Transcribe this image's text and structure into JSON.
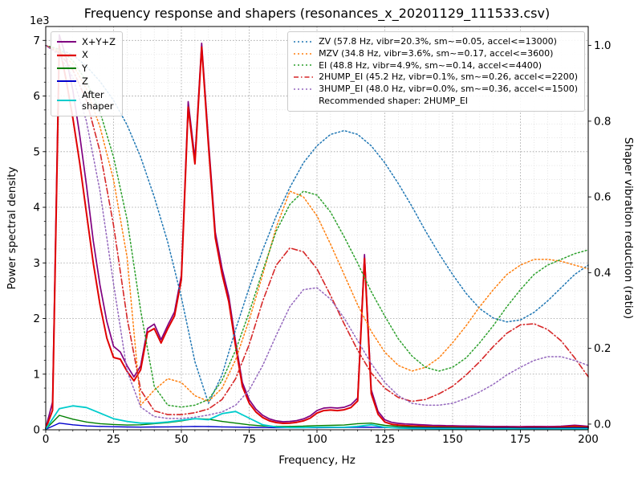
{
  "figure": {
    "title": "Frequency response and shapers (resonances_x_20201129_111533.csv)",
    "xlabel": "Frequency, Hz",
    "ylabel_left": "Power spectral density",
    "ylabel_right": "Shaper vibration reduction (ratio)",
    "offset_text": "1e3",
    "background": "#ffffff"
  },
  "legend_left": {
    "items": [
      {
        "label": "X+Y+Z",
        "color": "#800080",
        "style": "solid",
        "lw": 2
      },
      {
        "label": "X",
        "color": "#e00000",
        "style": "solid",
        "lw": 2.2
      },
      {
        "label": "Y",
        "color": "#008000",
        "style": "solid",
        "lw": 2
      },
      {
        "label": "Z",
        "color": "#0000cd",
        "style": "solid",
        "lw": 2
      },
      {
        "label": "After\nshaper",
        "color": "#00cccc",
        "style": "solid",
        "lw": 2
      }
    ]
  },
  "chart_data": {
    "type": "line",
    "title": "Frequency response and shapers (resonances_x_20201129_111533.csv)",
    "xlabel": "Frequency, Hz",
    "ylabel": "Power spectral density",
    "ylabel_right": "Shaper vibration reduction (ratio)",
    "y_left_multiplier": "1e3",
    "grid": true,
    "legend_position_psd": "upper left",
    "legend_position_shapers": "upper right",
    "xlim": [
      0,
      200
    ],
    "ylim_left": [
      0,
      7250
    ],
    "ylim_right": [
      -0.015,
      1.05
    ],
    "x_ticks": [
      0,
      25,
      50,
      75,
      100,
      125,
      150,
      175,
      200
    ],
    "x_tick_labels": [
      "0",
      "25",
      "50",
      "75",
      "100",
      "125",
      "150",
      "175",
      "200"
    ],
    "y_left_ticks": [
      0,
      1000,
      2000,
      3000,
      4000,
      5000,
      6000,
      7000
    ],
    "y_left_tick_labels": [
      "0",
      "1",
      "2",
      "3",
      "4",
      "5",
      "6",
      "7"
    ],
    "y_right_ticks": [
      0,
      0.2,
      0.4,
      0.6,
      0.8,
      1.0
    ],
    "y_right_tick_labels": [
      "0.0",
      "0.2",
      "0.4",
      "0.6",
      "0.8",
      "1.0"
    ],
    "x_minor_step": 5,
    "y_left_minor_step": 250,
    "freqs_fine": [
      0,
      2.5,
      5,
      7.5,
      10,
      12.5,
      15,
      17.5,
      20,
      22.5,
      25,
      27.5,
      30,
      32.5,
      35,
      37.5,
      40,
      42.5,
      45,
      47.5,
      50,
      52.5,
      55,
      57.5,
      60,
      62.5,
      65,
      67.5,
      70,
      72.5,
      75,
      77.5,
      80,
      82.5,
      85,
      87.5,
      90,
      92.5,
      95,
      97.5,
      100,
      102.5,
      105,
      107.5,
      110,
      112.5,
      115,
      117.5,
      120,
      122.5,
      125,
      127.5,
      130,
      132.5,
      135,
      137.5,
      140,
      142.5,
      145,
      147.5,
      150,
      152.5,
      155,
      157.5,
      160,
      162.5,
      165,
      167.5,
      170,
      172.5,
      175,
      177.5,
      180,
      182.5,
      185,
      187.5,
      190,
      192.5,
      195,
      197.5,
      200
    ],
    "freqs_coarse": [
      0,
      5,
      10,
      15,
      20,
      25,
      30,
      35,
      40,
      45,
      50,
      55,
      60,
      65,
      70,
      75,
      80,
      85,
      90,
      95,
      100,
      105,
      110,
      115,
      120,
      125,
      130,
      135,
      140,
      145,
      150,
      155,
      160,
      165,
      170,
      175,
      180,
      185,
      190,
      195,
      200
    ],
    "psd_series": [
      {
        "name": "X+Y+Z",
        "color": "#800080",
        "style": "solid",
        "lw": 1.7,
        "grid": "fine",
        "values": [
          30,
          500,
          7100,
          6700,
          6100,
          5300,
          4400,
          3400,
          2600,
          1950,
          1500,
          1400,
          1150,
          950,
          1150,
          1820,
          1900,
          1620,
          1880,
          2120,
          2780,
          5900,
          4870,
          6950,
          5200,
          3550,
          2900,
          2400,
          1580,
          850,
          540,
          370,
          260,
          195,
          160,
          145,
          150,
          165,
          195,
          250,
          345,
          390,
          400,
          390,
          405,
          450,
          570,
          3150,
          720,
          330,
          180,
          135,
          115,
          105,
          100,
          92,
          86,
          80,
          78,
          74,
          72,
          70,
          68,
          66,
          64,
          62,
          61,
          60,
          59,
          58,
          57,
          59,
          61,
          59,
          58,
          60,
          63,
          72,
          82,
          72,
          62
        ]
      },
      {
        "name": "X",
        "color": "#e00000",
        "style": "solid",
        "lw": 2.0,
        "grid": "fine",
        "values": [
          20,
          350,
          6900,
          6300,
          5600,
          4800,
          3900,
          3000,
          2250,
          1650,
          1300,
          1270,
          1050,
          880,
          1080,
          1750,
          1820,
          1560,
          1820,
          2050,
          2700,
          5800,
          4780,
          6880,
          5100,
          3450,
          2800,
          2300,
          1500,
          780,
          480,
          320,
          220,
          160,
          130,
          115,
          120,
          135,
          160,
          210,
          300,
          345,
          355,
          345,
          360,
          400,
          520,
          3080,
          650,
          280,
          140,
          100,
          85,
          75,
          70,
          65,
          60,
          55,
          55,
          50,
          50,
          48,
          46,
          45,
          44,
          43,
          42,
          42,
          41,
          41,
          40,
          42,
          44,
          42,
          41,
          43,
          46,
          55,
          65,
          55,
          45
        ]
      },
      {
        "name": "Y",
        "color": "#008000",
        "style": "solid",
        "lw": 1.4,
        "grid": "coarse",
        "values": [
          10,
          260,
          190,
          140,
          110,
          95,
          85,
          90,
          110,
          130,
          160,
          200,
          190,
          150,
          120,
          90,
          70,
          60,
          60,
          65,
          75,
          80,
          85,
          110,
          120,
          80,
          60,
          50,
          45,
          42,
          40,
          38,
          36,
          35,
          34,
          33,
          34,
          33,
          35,
          40,
          36
        ]
      },
      {
        "name": "Z",
        "color": "#0000cd",
        "style": "solid",
        "lw": 1.4,
        "grid": "coarse",
        "values": [
          8,
          120,
          90,
          70,
          60,
          55,
          50,
          48,
          50,
          52,
          55,
          60,
          58,
          52,
          48,
          44,
          40,
          38,
          37,
          37,
          38,
          39,
          40,
          45,
          46,
          40,
          36,
          34,
          33,
          32,
          31,
          30,
          30,
          29,
          29,
          28,
          29,
          28,
          30,
          33,
          30
        ]
      },
      {
        "name": "After shaper",
        "color": "#00cccc",
        "style": "solid",
        "lw": 1.8,
        "grid": "coarse",
        "values": [
          10,
          380,
          430,
          400,
          300,
          200,
          150,
          120,
          120,
          140,
          170,
          200,
          180,
          290,
          330,
          210,
          90,
          50,
          40,
          40,
          45,
          45,
          45,
          60,
          90,
          45,
          30,
          25,
          22,
          20,
          20,
          18,
          17,
          16,
          16,
          15,
          15,
          15,
          16,
          18,
          16
        ]
      }
    ],
    "shaper_series": [
      {
        "name": "ZV",
        "label": "ZV (57.8 Hz, vibr=20.3%, sm~=0.05, accel<=13000)",
        "color": "#1f77b4",
        "style": "dotted",
        "lw": 1.5,
        "grid": "coarse",
        "values": [
          1.0,
          0.99,
          0.975,
          0.945,
          0.905,
          0.855,
          0.79,
          0.705,
          0.6,
          0.48,
          0.335,
          0.165,
          0.055,
          0.13,
          0.25,
          0.36,
          0.46,
          0.55,
          0.625,
          0.69,
          0.735,
          0.765,
          0.775,
          0.765,
          0.735,
          0.69,
          0.635,
          0.575,
          0.51,
          0.45,
          0.395,
          0.345,
          0.305,
          0.28,
          0.27,
          0.275,
          0.295,
          0.325,
          0.36,
          0.395,
          0.42
        ]
      },
      {
        "name": "MZV",
        "label": "MZV (34.8 Hz, vibr=3.6%, sm~=0.17, accel<=3600)",
        "color": "#ff7f0e",
        "style": "dotted",
        "lw": 1.5,
        "grid": "coarse",
        "values": [
          1.0,
          0.985,
          0.95,
          0.885,
          0.785,
          0.645,
          0.44,
          0.05,
          0.09,
          0.12,
          0.11,
          0.075,
          0.06,
          0.095,
          0.17,
          0.275,
          0.395,
          0.52,
          0.615,
          0.6,
          0.55,
          0.475,
          0.395,
          0.315,
          0.245,
          0.19,
          0.155,
          0.14,
          0.15,
          0.175,
          0.215,
          0.26,
          0.31,
          0.355,
          0.395,
          0.42,
          0.435,
          0.435,
          0.43,
          0.42,
          0.41
        ]
      },
      {
        "name": "EI",
        "label": "EI (48.8 Hz, vibr=4.9%, sm~=0.14, accel<=4400)",
        "color": "#2ca02c",
        "style": "dotted",
        "lw": 1.5,
        "grid": "coarse",
        "values": [
          1.0,
          0.99,
          0.96,
          0.905,
          0.825,
          0.705,
          0.54,
          0.3,
          0.1,
          0.05,
          0.045,
          0.05,
          0.065,
          0.115,
          0.195,
          0.295,
          0.405,
          0.51,
          0.58,
          0.615,
          0.605,
          0.56,
          0.495,
          0.425,
          0.35,
          0.285,
          0.225,
          0.18,
          0.15,
          0.14,
          0.15,
          0.175,
          0.215,
          0.26,
          0.31,
          0.355,
          0.395,
          0.42,
          0.435,
          0.45,
          0.46
        ]
      },
      {
        "name": "2HUMP_EI",
        "label": "2HUMP_EI (45.2 Hz, vibr=0.1%, sm~=0.26, accel<=2200)",
        "color": "#d62728",
        "style": "dashdot",
        "lw": 1.6,
        "grid": "coarse",
        "values": [
          1.0,
          0.98,
          0.935,
          0.855,
          0.72,
          0.525,
          0.28,
          0.09,
          0.035,
          0.025,
          0.025,
          0.03,
          0.04,
          0.065,
          0.12,
          0.21,
          0.325,
          0.42,
          0.465,
          0.455,
          0.41,
          0.34,
          0.265,
          0.195,
          0.135,
          0.095,
          0.07,
          0.06,
          0.065,
          0.08,
          0.1,
          0.13,
          0.165,
          0.205,
          0.24,
          0.262,
          0.265,
          0.25,
          0.22,
          0.175,
          0.125
        ]
      },
      {
        "name": "3HUMP_EI",
        "label": "3HUMP_EI (48.0 Hz, vibr=0.0%, sm~=0.36, accel<=1500)",
        "color": "#9467bd",
        "style": "dotted",
        "lw": 1.5,
        "grid": "coarse",
        "values": [
          1.0,
          0.975,
          0.915,
          0.8,
          0.615,
          0.37,
          0.14,
          0.045,
          0.02,
          0.015,
          0.015,
          0.018,
          0.024,
          0.032,
          0.05,
          0.09,
          0.155,
          0.235,
          0.31,
          0.355,
          0.36,
          0.33,
          0.28,
          0.22,
          0.16,
          0.11,
          0.075,
          0.055,
          0.05,
          0.05,
          0.055,
          0.068,
          0.085,
          0.105,
          0.13,
          0.15,
          0.168,
          0.178,
          0.178,
          0.168,
          0.155
        ]
      }
    ],
    "recommended_text": "Recommended shaper: 2HUMP_EI"
  }
}
